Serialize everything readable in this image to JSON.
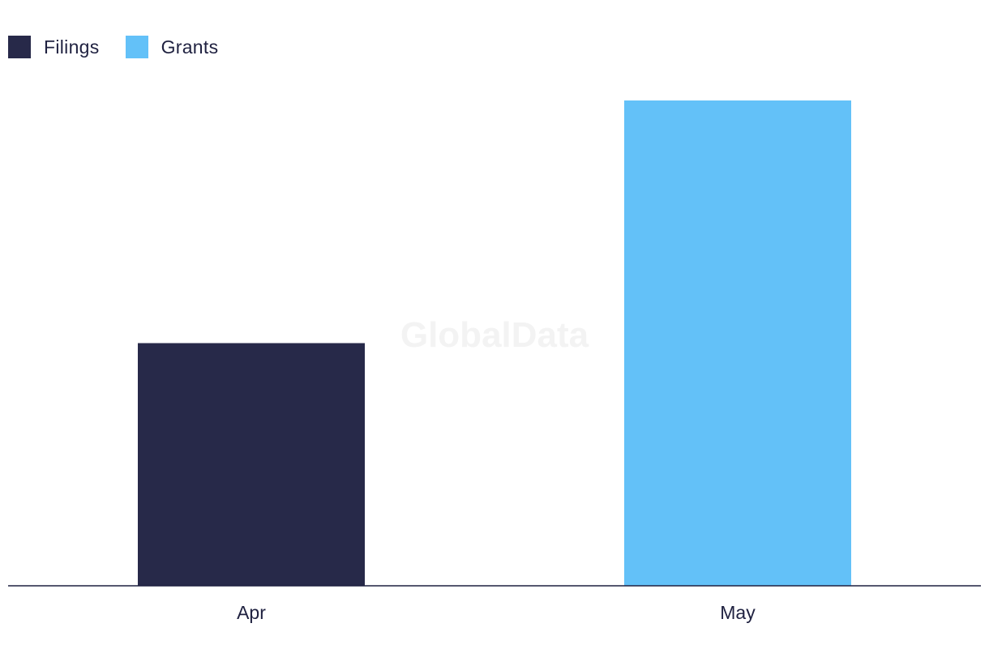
{
  "watermark": "GlobalData",
  "chart_data": {
    "type": "bar",
    "categories": [
      "Apr",
      "May"
    ],
    "series": [
      {
        "name": "Filings",
        "color": "#272949",
        "values": [
          1,
          null
        ]
      },
      {
        "name": "Grants",
        "color": "#63c1f8",
        "values": [
          null,
          2
        ]
      }
    ],
    "ylim": [
      0,
      2
    ],
    "grid": false,
    "legend_position": "top-left",
    "xlabel": "",
    "ylabel": ""
  }
}
